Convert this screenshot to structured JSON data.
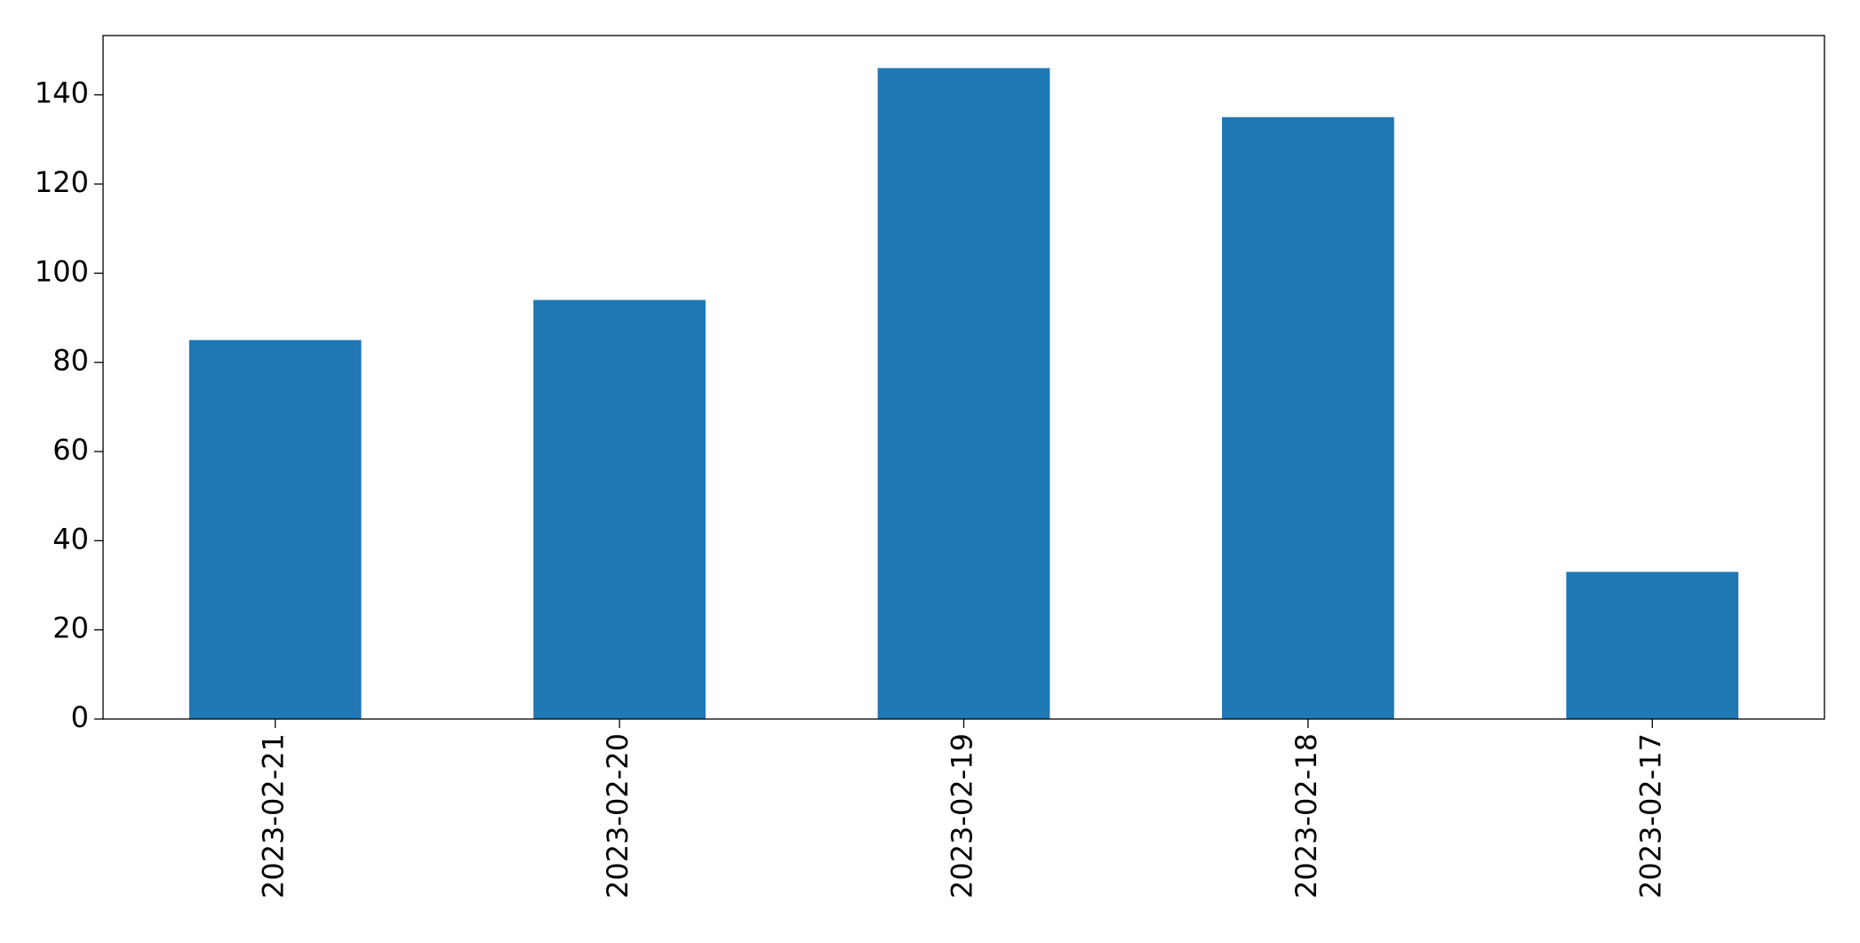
{
  "chart_data": {
    "type": "bar",
    "categories": [
      "2023-02-21",
      "2023-02-20",
      "2023-02-19",
      "2023-02-18",
      "2023-02-17"
    ],
    "values": [
      85,
      94,
      146,
      135,
      33
    ],
    "color": "#1f77b4",
    "ylim": [
      0,
      153.3
    ],
    "yticks": [
      0,
      20,
      40,
      60,
      80,
      100,
      120,
      140
    ],
    "grid": false
  }
}
